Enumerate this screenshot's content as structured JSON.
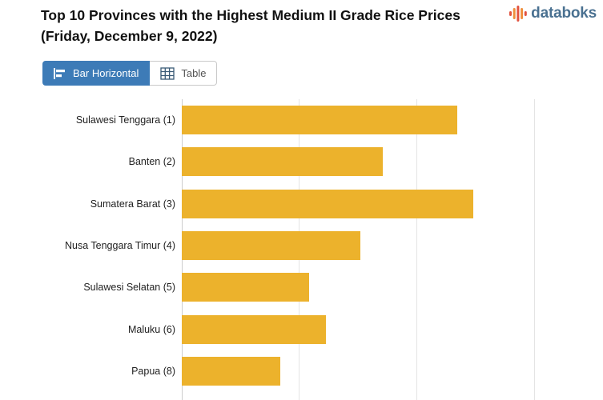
{
  "header": {
    "title": "Top 10 Provinces with the Highest Medium II Grade Rice Prices (Friday, December 9, 2022)",
    "logo_text": "databoks"
  },
  "toggle": {
    "bar_label": "Bar Horizontal",
    "table_label": "Table"
  },
  "colors": {
    "bar": "#ECB22C",
    "active_button": "#3D7BB7",
    "logo_text": "#4A7191",
    "logo_icon_red": "#E2523F",
    "logo_icon_orange": "#EF8E3C",
    "gridline": "#E4E4E4",
    "axis_line": "#CDCDCD"
  },
  "chart_data": {
    "type": "bar",
    "orientation": "horizontal",
    "title": "Top 10 Provinces with the Highest Medium II Grade Rice Prices (Friday, December 9, 2022)",
    "categories": [
      "Sulawesi Tenggara (1)",
      "Banten (2)",
      "Sumatera Barat (3)",
      "Nusa Tenggara Timur (4)",
      "Sulawesi Selatan (5)",
      "Maluku (6)",
      "Papua (8)"
    ],
    "values_pct_of_plot_width": [
      67,
      49,
      71,
      43.5,
      31,
      35,
      24
    ],
    "gridline_positions_pct": [
      0,
      28.5,
      57.2,
      85.7
    ],
    "x_axis_labels_visible": false,
    "bar_color": "#ECB22C",
    "grid": true,
    "legend": false,
    "note": "Numeric axis labels are cropped out of the screenshot; bar values are estimated as percent of visible plot width."
  }
}
